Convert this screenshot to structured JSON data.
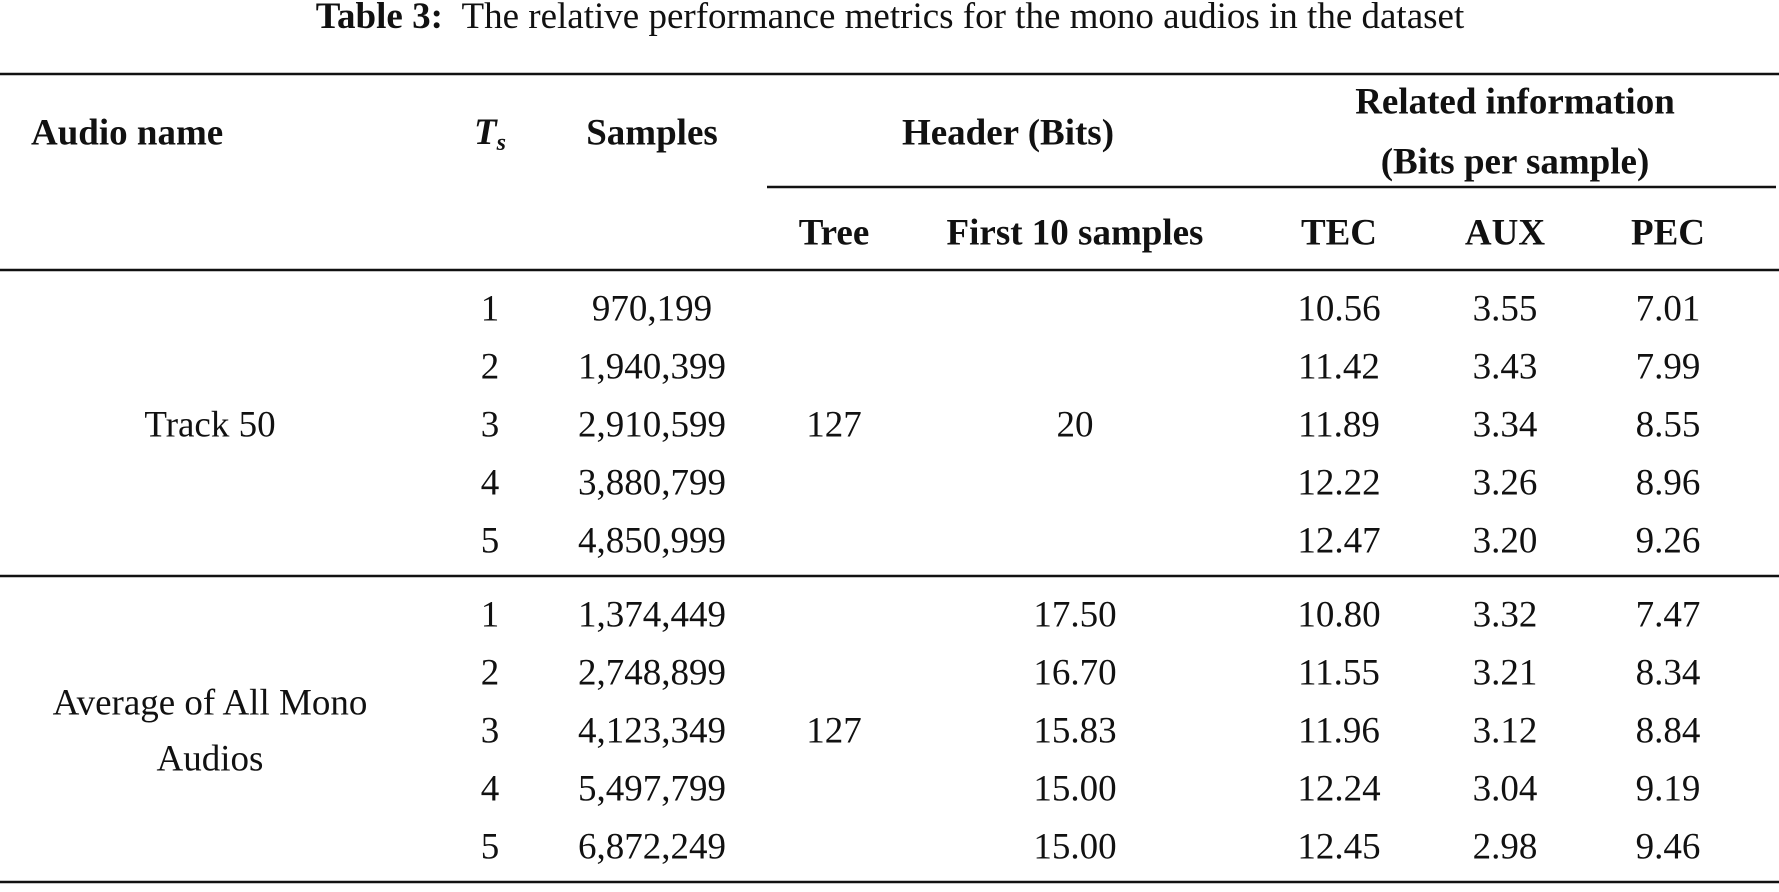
{
  "caption": {
    "label": "Table 3:",
    "text": "The relative performance metrics for the mono audios in the dataset"
  },
  "table": {
    "headers": {
      "audio_name": "Audio name",
      "ts": {
        "symbol": "T",
        "subscript": "s"
      },
      "samples": "Samples",
      "header_bits": "Header (Bits)",
      "related_information": [
        "Related information",
        "(Bits per sample)"
      ],
      "tree": "Tree",
      "first_10_samples": "First 10 samples",
      "tec": "TEC",
      "aux": "AUX",
      "pec": "PEC"
    },
    "groups": [
      {
        "name": [
          "Track 50"
        ],
        "tree": "127",
        "first_10_samples": "20",
        "rows": [
          {
            "ts": "1",
            "samples": "970,199",
            "tec": "10.56",
            "aux": "3.55",
            "pec": "7.01"
          },
          {
            "ts": "2",
            "samples": "1,940,399",
            "tec": "11.42",
            "aux": "3.43",
            "pec": "7.99"
          },
          {
            "ts": "3",
            "samples": "2,910,599",
            "tec": "11.89",
            "aux": "3.34",
            "pec": "8.55"
          },
          {
            "ts": "4",
            "samples": "3,880,799",
            "tec": "12.22",
            "aux": "3.26",
            "pec": "8.96"
          },
          {
            "ts": "5",
            "samples": "4,850,999",
            "tec": "12.47",
            "aux": "3.20",
            "pec": "9.26"
          }
        ]
      },
      {
        "name": [
          "Average of All Mono",
          "Audios"
        ],
        "tree": "127",
        "rows": [
          {
            "ts": "1",
            "samples": "1,374,449",
            "first_10_samples": "17.50",
            "tec": "10.80",
            "aux": "3.32",
            "pec": "7.47"
          },
          {
            "ts": "2",
            "samples": "2,748,899",
            "first_10_samples": "16.70",
            "tec": "11.55",
            "aux": "3.21",
            "pec": "8.34"
          },
          {
            "ts": "3",
            "samples": "4,123,349",
            "first_10_samples": "15.83",
            "tec": "11.96",
            "aux": "3.12",
            "pec": "8.84"
          },
          {
            "ts": "4",
            "samples": "5,497,799",
            "first_10_samples": "15.00",
            "tec": "12.24",
            "aux": "3.04",
            "pec": "9.19"
          },
          {
            "ts": "5",
            "samples": "6,872,249",
            "first_10_samples": "15.00",
            "tec": "12.45",
            "aux": "2.98",
            "pec": "9.46"
          }
        ]
      }
    ]
  }
}
